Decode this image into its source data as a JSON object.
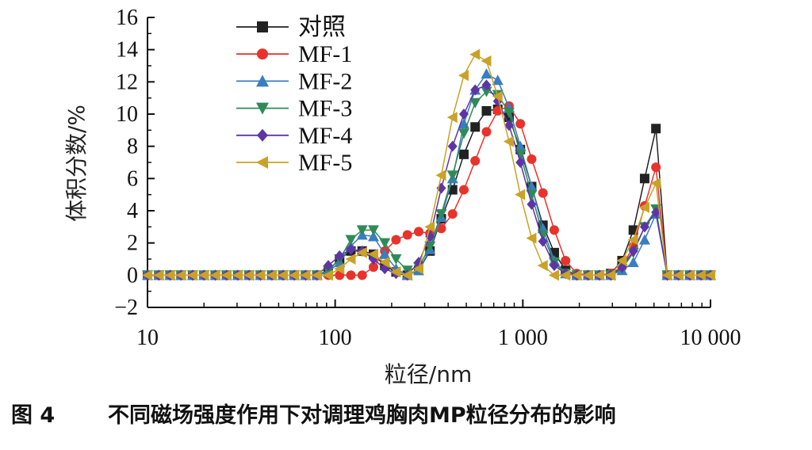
{
  "chart_data": {
    "type": "line",
    "xscale": "log",
    "xlabel": "粒径/nm",
    "ylabel": "体积分数/%",
    "xlim": [
      10,
      10000
    ],
    "ylim": [
      -2,
      16
    ],
    "yticks": [
      -2,
      0,
      2,
      4,
      6,
      8,
      10,
      12,
      14,
      16
    ],
    "yticklabels": [
      "−2",
      "0",
      "2",
      "4",
      "6",
      "8",
      "10",
      "12",
      "14",
      "16"
    ],
    "xticks": [
      10,
      100,
      1000,
      10000
    ],
    "xticklabels": [
      "10",
      "100",
      "1 000",
      "10 000"
    ],
    "legend_position": "top-left",
    "x": [
      10,
      11.5,
      13.2,
      15.1,
      17.4,
      20,
      23,
      26.4,
      30.3,
      34.8,
      40,
      46,
      52.8,
      60.6,
      69.6,
      80,
      91.9,
      105.6,
      121.3,
      139.3,
      160,
      183.8,
      211.1,
      242.5,
      278.6,
      320,
      367.6,
      422.3,
      485.1,
      557.2,
      640,
      735.2,
      844.5,
      970.1,
      1114.4,
      1280,
      1470.4,
      1689.1,
      1940.3,
      2228.8,
      2560,
      2940.8,
      3378.1,
      3880.5,
      4457.5,
      5120,
      5881.5,
      6756.1,
      7760.9,
      8915.4,
      10000
    ],
    "series": [
      {
        "name": "对照",
        "color": "#222222",
        "marker": "square",
        "values": [
          0,
          0,
          0,
          0,
          0,
          0,
          0,
          0,
          0,
          0,
          0,
          0,
          0,
          0,
          0,
          0,
          0.3,
          1.0,
          1.5,
          1.5,
          1.3,
          0.6,
          0.2,
          0,
          0.3,
          1.5,
          3.5,
          5.3,
          7.5,
          9.2,
          10.2,
          10.3,
          9.8,
          7.8,
          5.5,
          3.1,
          1.4,
          0.3,
          0,
          0,
          0,
          0.1,
          0.9,
          2.8,
          6.0,
          9.1,
          0,
          0,
          0,
          0,
          0
        ]
      },
      {
        "name": "MF-1",
        "color": "#e8322c",
        "marker": "circle",
        "values": [
          0,
          0,
          0,
          0,
          0,
          0,
          0,
          0,
          0,
          0,
          0,
          0,
          0,
          0,
          0,
          0,
          0,
          0,
          0,
          0,
          0.5,
          1.5,
          2.2,
          2.5,
          2.7,
          2.6,
          2.9,
          3.8,
          5.3,
          7.1,
          8.9,
          10.2,
          10.5,
          9.4,
          7.2,
          5.1,
          2.8,
          0.9,
          0.1,
          0,
          0,
          0.1,
          0.5,
          1.8,
          4.3,
          6.7,
          0,
          0,
          0,
          0,
          0
        ]
      },
      {
        "name": "MF-2",
        "color": "#3a7dc0",
        "marker": "triangle-up",
        "values": [
          0,
          0,
          0,
          0,
          0,
          0,
          0,
          0,
          0,
          0,
          0,
          0,
          0,
          0,
          0,
          0,
          0.2,
          0.8,
          1.8,
          2.5,
          2.4,
          1.3,
          0.4,
          0,
          0.3,
          1.6,
          3.6,
          6.0,
          9.4,
          11.5,
          12.5,
          12.1,
          10.4,
          8.0,
          5.5,
          2.9,
          0.9,
          0.1,
          0,
          0,
          0,
          0,
          0.3,
          0.8,
          2.2,
          3.8,
          0,
          0,
          0,
          0,
          0
        ]
      },
      {
        "name": "MF-3",
        "color": "#2e8b57",
        "marker": "triangle-down",
        "values": [
          0,
          0,
          0,
          0,
          0,
          0,
          0,
          0,
          0,
          0,
          0,
          0,
          0,
          0,
          0,
          0,
          0.3,
          1.0,
          2.2,
          2.8,
          2.8,
          2.0,
          1.0,
          0.3,
          0.5,
          1.8,
          3.8,
          6.2,
          8.8,
          10.7,
          11.4,
          11.2,
          10.1,
          7.5,
          5.0,
          2.5,
          0.8,
          0.1,
          0,
          0,
          0,
          0,
          0.4,
          1.4,
          3.0,
          4.1,
          0,
          0,
          0,
          0,
          0
        ]
      },
      {
        "name": "MF-4",
        "color": "#5e35a6",
        "marker": "diamond",
        "values": [
          0,
          0,
          0,
          0,
          0,
          0,
          0,
          0,
          0,
          0,
          0,
          0,
          0,
          0,
          0,
          0,
          0.6,
          1.2,
          1.6,
          1.5,
          1.0,
          0.4,
          0.1,
          0,
          0.8,
          2.4,
          5.4,
          8.0,
          10.0,
          11.5,
          11.8,
          10.8,
          9.3,
          7.0,
          4.4,
          2.1,
          0.6,
          0.1,
          0,
          0,
          0,
          0,
          0.5,
          1.5,
          3.0,
          3.9,
          0,
          0,
          0,
          0,
          0
        ]
      },
      {
        "name": "MF-5",
        "color": "#c9a227",
        "marker": "triangle-left",
        "values": [
          0,
          0,
          0,
          0,
          0,
          0,
          0,
          0,
          0,
          0,
          0,
          0,
          0,
          0,
          0,
          0,
          0,
          0.4,
          1.0,
          1.4,
          1.3,
          0.8,
          0.2,
          0,
          0.4,
          3.0,
          6.2,
          9.8,
          12.4,
          13.7,
          13.3,
          11.1,
          8.3,
          5.0,
          2.3,
          0.6,
          0,
          0,
          0,
          0,
          0,
          0,
          0.9,
          2.2,
          4.2,
          5.7,
          0,
          0,
          0,
          0,
          0
        ]
      }
    ]
  },
  "caption": {
    "figure_number": "图 4",
    "title": "不同磁场强度作用下对调理鸡胸肉MP粒径分布的影响"
  }
}
